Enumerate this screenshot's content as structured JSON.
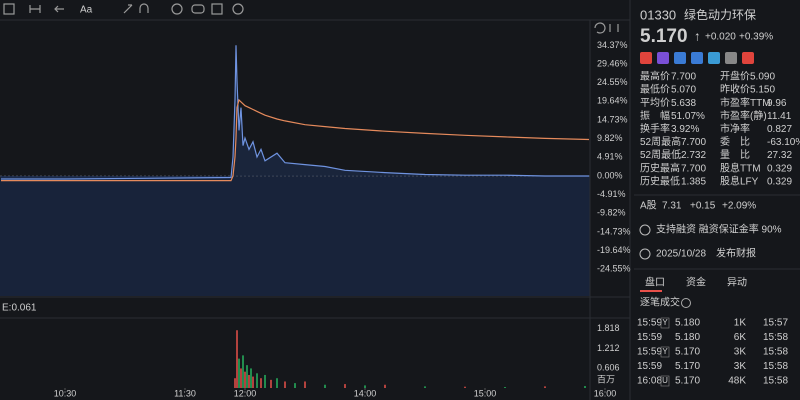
{
  "toolbar": {
    "font_button": "Aa"
  },
  "chart_data": [
    {
      "type": "line",
      "x": [
        28,
        60,
        100,
        143,
        144,
        145,
        145.5,
        146,
        147,
        148,
        149,
        150,
        152,
        154,
        156,
        158,
        160,
        166,
        170,
        180,
        190,
        200,
        220,
        240,
        260,
        280,
        300,
        322
      ],
      "series": [
        {
          "name": "价格",
          "color": "#6f93e0",
          "values": [
            -0.8,
            -0.8,
            -0.6,
            -0.4,
            5,
            20,
            34.4,
            25,
            12,
            18,
            8,
            10,
            7,
            9,
            5,
            7,
            4,
            6,
            3.5,
            3,
            2.5,
            1.5,
            0.9,
            0.4,
            0.2,
            0.2,
            0.0,
            0.0
          ]
        },
        {
          "name": "均价",
          "color": "#e58a5c",
          "values": [
            -1.2,
            -1.2,
            -1.2,
            -1.2,
            0,
            5,
            10,
            18,
            20,
            19.5,
            19,
            18.5,
            18,
            17.5,
            17,
            16.5,
            16,
            15,
            14.5,
            13.5,
            13,
            12.5,
            11.8,
            11.2,
            10.7,
            10.3,
            9.9,
            9.6
          ]
        }
      ],
      "xlim": [
        27.5,
        322.5
      ],
      "ylim": [
        -30,
        40
      ],
      "yticks": [
        {
          "value": 34.37,
          "label": "34.37%",
          "color": "#e8504a"
        },
        {
          "value": 29.46,
          "label": "29.46%",
          "color": "#e8504a"
        },
        {
          "value": 24.55,
          "label": "24.55%",
          "color": "#e8504a"
        },
        {
          "value": 19.64,
          "label": "19.64%",
          "color": "#e8504a"
        },
        {
          "value": 14.73,
          "label": "14.73%",
          "color": "#e8504a"
        },
        {
          "value": 9.82,
          "label": "9.82%",
          "color": "#e8504a"
        },
        {
          "value": 4.91,
          "label": "4.91%",
          "color": "#e8504a"
        },
        {
          "value": 0,
          "label": "0.00%",
          "color": "#d0d0d0"
        },
        {
          "value": -4.91,
          "label": "-4.91%",
          "color": "#27b35f"
        },
        {
          "value": -9.82,
          "label": "-9.82%",
          "color": "#27b35f"
        },
        {
          "value": -14.73,
          "label": "-14.73%",
          "color": "#27b35f"
        },
        {
          "value": -19.64,
          "label": "-19.64%",
          "color": "#27b35f"
        },
        {
          "value": -24.55,
          "label": "-24.55%",
          "color": "#27b35f"
        }
      ]
    },
    {
      "type": "bar",
      "indicator_label": "E:0.061",
      "x": [
        145,
        146,
        147,
        148,
        149,
        150,
        151,
        152,
        153,
        154,
        156,
        158,
        160,
        163,
        166,
        170,
        175,
        180,
        190,
        200,
        210,
        220,
        240,
        260,
        280,
        300,
        320
      ],
      "values": [
        0.3,
        1.77,
        0.9,
        0.6,
        1.0,
        0.5,
        0.7,
        0.4,
        0.6,
        0.35,
        0.45,
        0.3,
        0.4,
        0.25,
        0.3,
        0.2,
        0.15,
        0.2,
        0.1,
        0.12,
        0.08,
        0.1,
        0.05,
        0.04,
        0.03,
        0.05,
        0.06
      ],
      "colors": [
        "#e8504a",
        "#e8504a",
        "#27b35f",
        "#e8504a",
        "#27b35f",
        "#e8504a",
        "#27b35f",
        "#e8504a",
        "#27b35f",
        "#e8504a",
        "#27b35f",
        "#e8504a",
        "#27b35f",
        "#e8504a",
        "#27b35f",
        "#e8504a",
        "#27b35f",
        "#e8504a",
        "#27b35f",
        "#e8504a",
        "#27b35f",
        "#e8504a",
        "#27b35f",
        "#e8504a",
        "#27b35f",
        "#e8504a",
        "#27b35f"
      ],
      "xlim": [
        27.5,
        322.5
      ],
      "ylim": [
        0,
        1.9
      ],
      "yticks": [
        1.818,
        1.212,
        0.606
      ],
      "y_unit": "百万",
      "xticks": [
        {
          "value": 60,
          "label": "10:30"
        },
        {
          "value": 120,
          "label": "11:30"
        },
        {
          "value": 150,
          "label": "12:00"
        },
        {
          "value": 210,
          "label": "14:00"
        },
        {
          "value": 270,
          "label": "15:00"
        },
        {
          "value": 330,
          "label": "16:00"
        }
      ]
    }
  ],
  "quote": {
    "code": "01330",
    "name": "绿色动力环保",
    "price": "5.170",
    "arrow": "↑",
    "change": "+0.020",
    "change_pct": "+0.39%"
  },
  "stats_left": [
    {
      "label": "最高价",
      "value": "7.700",
      "color": "#e8504a"
    },
    {
      "label": "最低价",
      "value": "5.070",
      "color": "#27b35f"
    },
    {
      "label": "平均价",
      "value": "5.638",
      "color": "#e8504a"
    },
    {
      "label": "振　幅",
      "value": "51.07%",
      "color": "#e6e6e6"
    },
    {
      "label": "换手率",
      "value": "3.92%",
      "color": "#e6e6e6"
    },
    {
      "label": "52周最高",
      "value": "7.700",
      "color": "#e8504a"
    },
    {
      "label": "52周最低",
      "value": "2.732",
      "color": "#27b35f"
    },
    {
      "label": "历史最高",
      "value": "7.700",
      "color": "#e8504a"
    },
    {
      "label": "历史最低",
      "value": "1.385",
      "color": "#27b35f"
    }
  ],
  "stats_right": [
    {
      "label": "开盘价",
      "value": "5.090",
      "color": "#27b35f"
    },
    {
      "label": "昨收价",
      "value": "5.150",
      "color": "#e6e6e6"
    },
    {
      "label": "市盈率TTM",
      "value": "9.96",
      "color": "#e6e6e6"
    },
    {
      "label": "市盈率(静)",
      "value": "11.41",
      "color": "#e6e6e6"
    },
    {
      "label": "市净率",
      "value": "0.827",
      "color": "#e6e6e6"
    },
    {
      "label": "委　比",
      "value": "-63.10%",
      "color": "#e6e6e6"
    },
    {
      "label": "量　比",
      "value": "27.32",
      "color": "#e6e6e6"
    },
    {
      "label": "股息TTM",
      "value": "0.329",
      "color": "#e6e6e6"
    },
    {
      "label": "股息LFY",
      "value": "0.329",
      "color": "#e6e6e6"
    }
  ],
  "a_share": {
    "label": "A股",
    "price": "7.31",
    "change": "+0.15",
    "change_pct": "+2.09%"
  },
  "notices": [
    "支持融资 融资保证金率 90%",
    "2025/10/28　发布财报"
  ],
  "tabs": [
    "盘口",
    "资金",
    "异动"
  ],
  "trades_title": "逐笔成交",
  "trades": [
    {
      "time": "15:59",
      "flag": "Y",
      "price": "5.180",
      "volume": "1K",
      "vol_color": "#e6e6e6",
      "ts": "15:57"
    },
    {
      "time": "15:59",
      "price": "5.180",
      "volume": "6K",
      "vol_color": "#27b35f",
      "ts": "15:58"
    },
    {
      "time": "15:59",
      "flag": "Y",
      "price": "5.170",
      "volume": "3K",
      "vol_color": "#e6e6e6",
      "ts": "15:58"
    },
    {
      "time": "15:59",
      "price": "5.170",
      "volume": "3K",
      "vol_color": "#27b35f",
      "ts": "15:58"
    },
    {
      "time": "16:08",
      "flag": "U",
      "price": "5.170",
      "volume": "48K",
      "vol_color": "#e6e6e6",
      "ts": "15:58"
    }
  ]
}
